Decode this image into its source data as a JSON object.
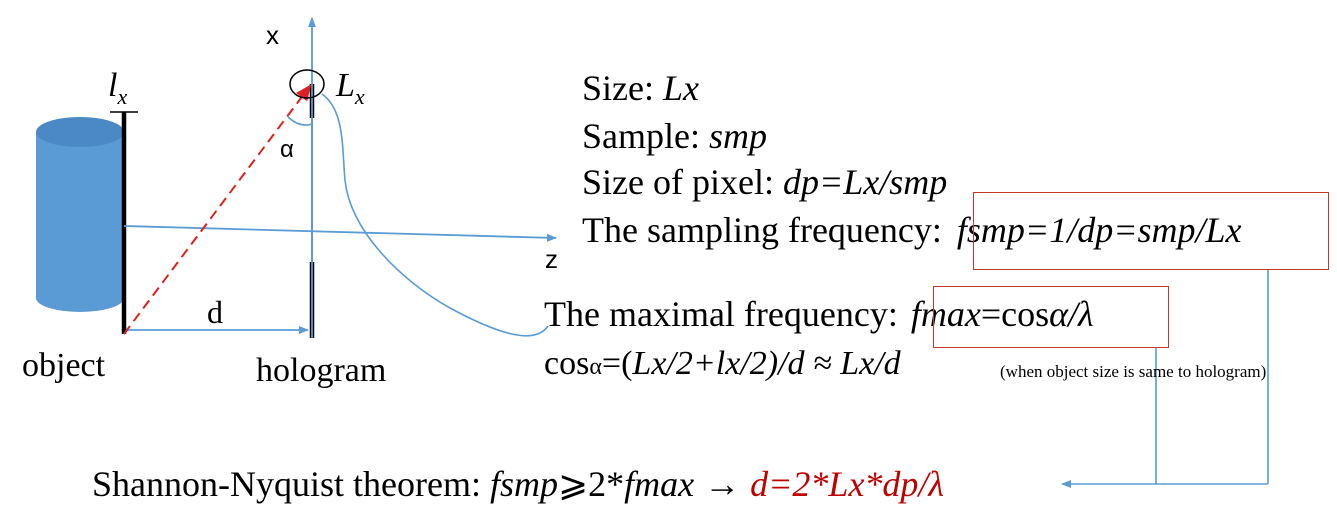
{
  "colors": {
    "cylinder": "#5b9bd5",
    "cylinder_top": "#4a89c5",
    "axis_line": "#5b9bd5",
    "ray": "#e02020",
    "box_border": "#c0392b",
    "result": "#c00000",
    "bars": "#000000"
  },
  "labels": {
    "axis_x": "x",
    "axis_z": "z",
    "object_size": "l",
    "object_size_sub": "x",
    "hologram_size": "L",
    "hologram_size_sub": "x",
    "angle": "α",
    "distance": "d",
    "object": "object",
    "hologram": "hologram"
  },
  "info": {
    "size_label": "Size: ",
    "size_value": "Lx",
    "sample_label": "Sample: ",
    "sample_value": "smp",
    "pixel_label": "Size of pixel: ",
    "pixel_value": "dp=Lx/smp",
    "sampling_label": "The sampling frequency: ",
    "sampling_value": "fsmp=1/dp=smp/Lx",
    "maximal_label": "The maximal frequency: ",
    "maximal_value_a": "fmax",
    "maximal_value_b": "=cos",
    "maximal_value_c": "α/λ",
    "cos_a": "cos",
    "cos_b": "α",
    "cos_c": "=(",
    "cos_d": "Lx/2+lx/2)/d",
    "cos_e": " ≈ Lx/d",
    "note": "(when object size is same to hologram)"
  },
  "theorem": {
    "label": "Shannon-Nyquist theorem: ",
    "lhs_a": "fsmp",
    "lhs_b": "⩾2*",
    "lhs_c": "fmax",
    "arrow": " → ",
    "result": "d=2*Lx*dp/λ"
  }
}
